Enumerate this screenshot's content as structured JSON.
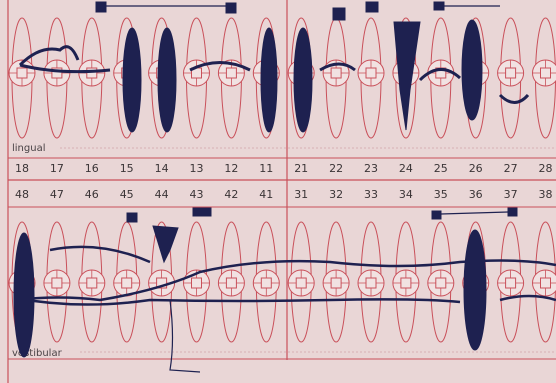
{
  "labels": {
    "lingual": "lingual",
    "vestibular": "vestibular"
  },
  "upper_teeth": [
    "18",
    "17",
    "16",
    "15",
    "14",
    "13",
    "12",
    "11",
    "21",
    "22",
    "23",
    "24",
    "25",
    "26",
    "27",
    "28"
  ],
  "lower_teeth": [
    "48",
    "47",
    "46",
    "45",
    "44",
    "43",
    "42",
    "41",
    "31",
    "32",
    "33",
    "34",
    "35",
    "36",
    "37",
    "38"
  ]
}
